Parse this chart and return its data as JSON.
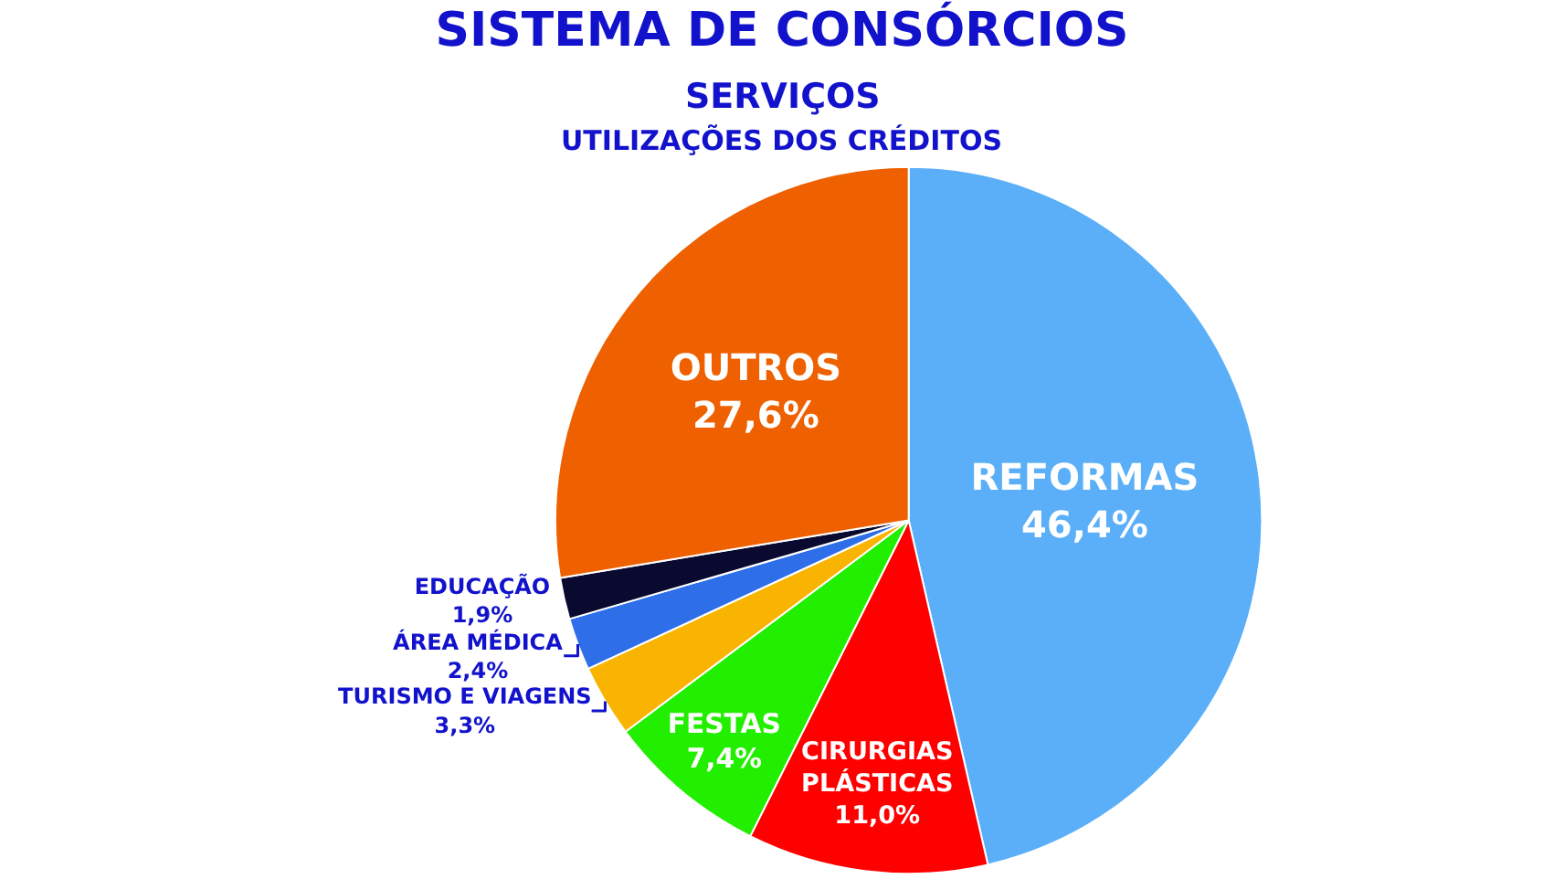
{
  "chart_data": {
    "type": "pie",
    "title": "SISTEMA DE CONSÓRCIOS",
    "subtitle": "SERVIÇOS",
    "annotations": [
      "UTILIZAÇÕES DOS CRÉDITOS"
    ],
    "categories": [
      "REFORMAS",
      "CIRURGIAS PLÁSTICAS",
      "FESTAS",
      "TURISMO E VIAGENS",
      "ÁREA MÉDICA",
      "EDUCAÇÃO",
      "OUTROS"
    ],
    "values": [
      46.4,
      11.0,
      7.4,
      3.3,
      2.4,
      1.9,
      27.6
    ],
    "value_labels": [
      "46,4%",
      "11,0%",
      "7,4%",
      "3,3%",
      "2,4%",
      "1,9%",
      "27,6%"
    ],
    "colors": [
      "#5aaff8",
      "#ff0000",
      "#22ee00",
      "#f8b400",
      "#2e6ee8",
      "#0a0a30",
      "#ee6000"
    ]
  }
}
